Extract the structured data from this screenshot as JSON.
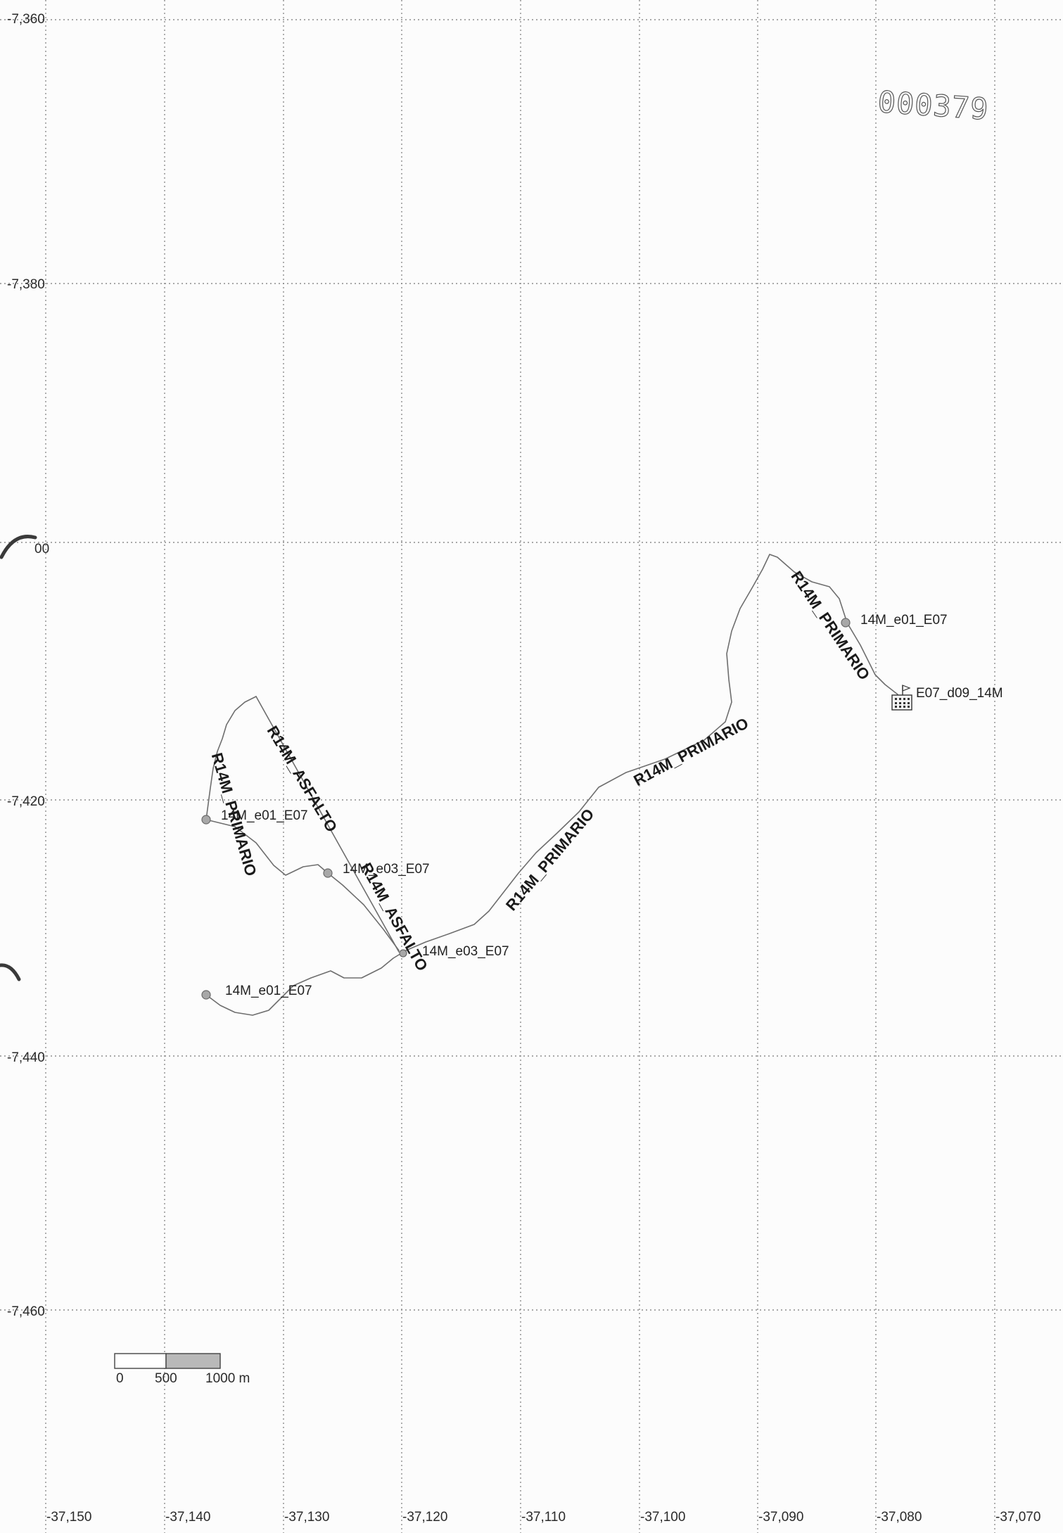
{
  "map": {
    "stamp_number": "000379",
    "longitude_labels": [
      "-37,150",
      "-37,140",
      "-37,130",
      "-37,120",
      "-37,110",
      "-37,100",
      "-37,090",
      "-37,080",
      "-37,070"
    ],
    "latitude_labels": [
      "-7,360",
      "-7,380",
      "00",
      "-7,420",
      "-7,440",
      "-7,460"
    ],
    "route_labels": {
      "primario_northeast": "R14M_PRIMARIO",
      "primario_central": "R14M_PRIMARIO",
      "primario_south": "R14M_PRIMARIO",
      "primario_west": "R14M_PRIMARIO",
      "asfalto_north": "R14M_ASFALTO",
      "asfalto_south": "R14M_ASFALTO"
    },
    "point_labels": {
      "e01_northeast": "14M_e01_E07",
      "e01_west": "14M_e01_E07",
      "e01_south": "14M_e01_E07",
      "e03_central": "14M_e03_E07",
      "e03_south": "14M_e03_E07",
      "d09_facility": "E07_d09_14M"
    },
    "scale_bar": {
      "labels": [
        "0",
        "500",
        "1000 m"
      ]
    }
  }
}
